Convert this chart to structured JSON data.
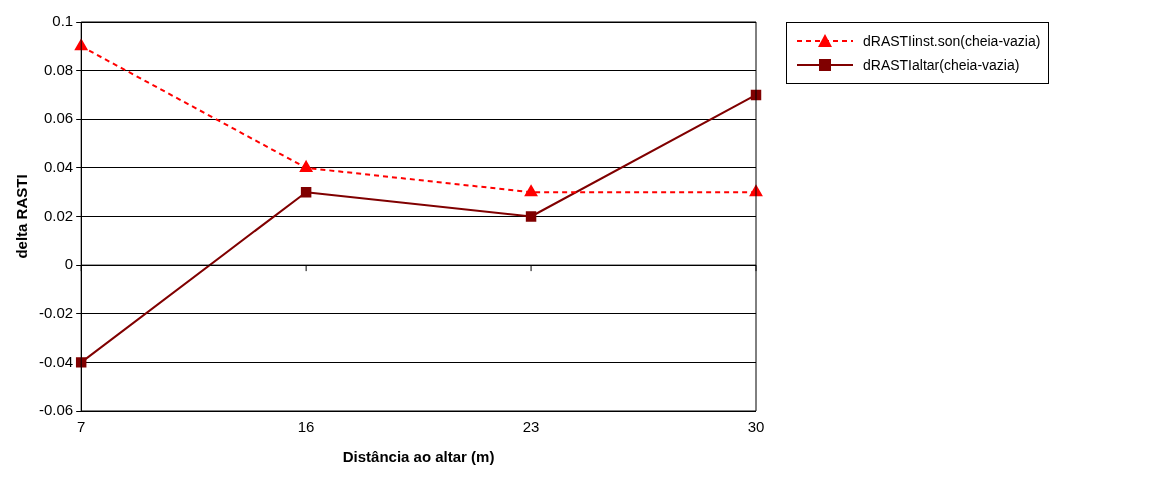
{
  "chart_data": {
    "type": "line",
    "xlabel": "Distância ao altar (m)",
    "ylabel": "delta RASTI",
    "categories": [
      "7",
      "16",
      "23",
      "30"
    ],
    "series": [
      {
        "name": "dRASTIinst.son(cheia-vazia)",
        "color": "#ff0000",
        "values": [
          0.09,
          0.04,
          0.03,
          0.03
        ],
        "marker": "triangle",
        "line_style": "dashed"
      },
      {
        "name": "dRASTIaltar(cheia-vazia)",
        "color": "#800000",
        "values": [
          -0.04,
          0.03,
          0.02,
          0.07
        ],
        "marker": "square",
        "line_style": "solid"
      }
    ],
    "ylim": [
      -0.06,
      0.1
    ],
    "yticks": [
      -0.06,
      -0.04,
      -0.02,
      0,
      0.02,
      0.04,
      0.06,
      0.08,
      0.1
    ],
    "grid": "y",
    "legend": "top right"
  }
}
